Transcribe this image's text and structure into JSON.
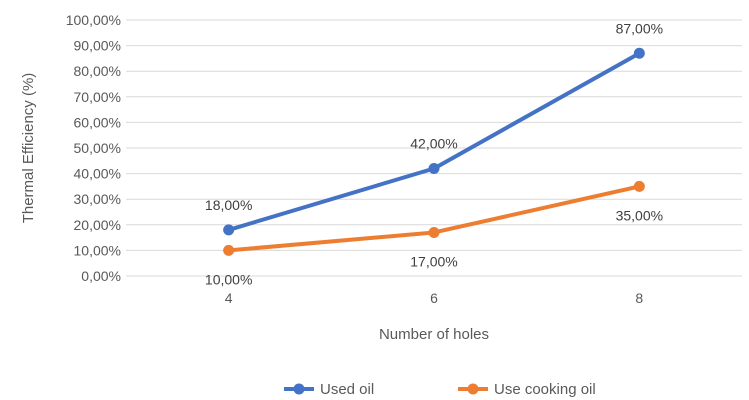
{
  "chart_data": {
    "type": "line",
    "title": "",
    "xlabel": "Number of holes",
    "ylabel": "Thermal Efficiency (%)",
    "categories": [
      "4",
      "6",
      "8"
    ],
    "ylim": [
      0,
      100
    ],
    "yticks": [
      0,
      10,
      20,
      30,
      40,
      50,
      60,
      70,
      80,
      90,
      100
    ],
    "ytick_labels": [
      "0,00%",
      "10,00%",
      "20,00%",
      "30,00%",
      "40,00%",
      "50,00%",
      "60,00%",
      "70,00%",
      "80,00%",
      "90,00%",
      "100,00%"
    ],
    "grid": true,
    "legend_position": "bottom",
    "series": [
      {
        "name": "Used oil",
        "color": "#4472C4",
        "values": [
          18,
          42,
          87
        ],
        "labels": [
          "18,00%",
          "42,00%",
          "87,00%"
        ],
        "label_position": "above"
      },
      {
        "name": "Use cooking oil",
        "color": "#ED7D31",
        "values": [
          10,
          17,
          35
        ],
        "labels": [
          "10,00%",
          "17,00%",
          "35,00%"
        ],
        "label_position": "below"
      }
    ]
  }
}
